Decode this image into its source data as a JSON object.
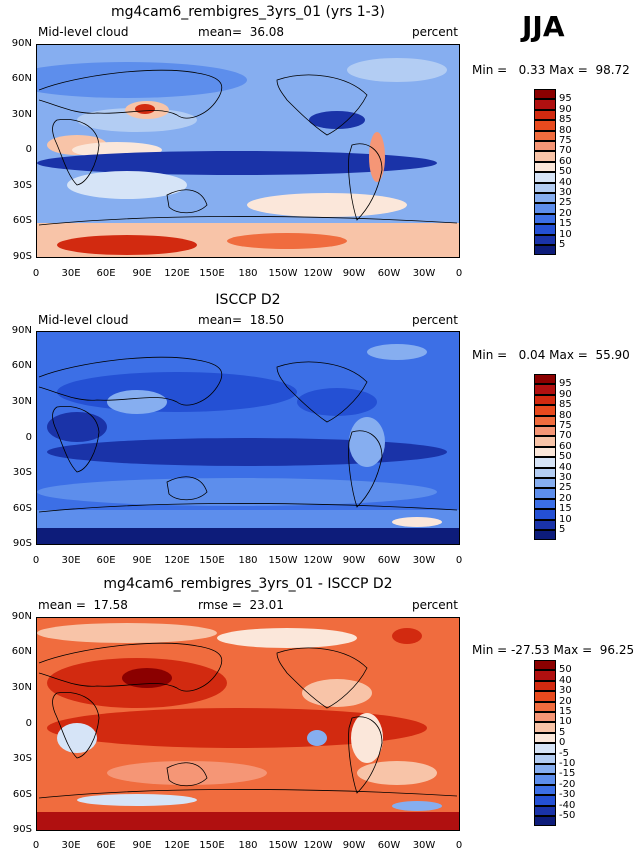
{
  "season": "JJA",
  "x_ticks": [
    "0",
    "30E",
    "60E",
    "90E",
    "120E",
    "150E",
    "180",
    "150W",
    "120W",
    "90W",
    "60W",
    "30W",
    "0"
  ],
  "y_ticks": [
    "90N",
    "60N",
    "30N",
    "0",
    "30S",
    "60S",
    "90S"
  ],
  "panels": [
    {
      "title": "mg4cam6_rembigres_3yrs_01 (yrs 1-3)",
      "left_label": "Mid-level cloud",
      "center_label": "mean=  36.08",
      "right_label": "percent",
      "stats": "Min =   0.33 Max =  98.72",
      "colorbar": [
        "95",
        "90",
        "85",
        "80",
        "75",
        "70",
        "60",
        "50",
        "40",
        "30",
        "25",
        "20",
        "15",
        "10",
        "5"
      ],
      "colors": [
        "#8b0000",
        "#b01010",
        "#d22a10",
        "#e84a1e",
        "#f06c3e",
        "#f59676",
        "#f8c4a8",
        "#fbe7da",
        "#d6e4f7",
        "#b3cdf3",
        "#86aef0",
        "#5d8eec",
        "#3c6fe6",
        "#2450d4",
        "#1a33a8",
        "#0d1c7a"
      ]
    },
    {
      "title": "ISCCP D2",
      "left_label": "Mid-level cloud",
      "center_label": "mean=  18.50",
      "right_label": "percent",
      "stats": "Min =   0.04 Max =  55.90",
      "colorbar": [
        "95",
        "90",
        "85",
        "80",
        "75",
        "70",
        "60",
        "50",
        "40",
        "30",
        "25",
        "20",
        "15",
        "10",
        "5"
      ],
      "colors": [
        "#8b0000",
        "#b01010",
        "#d22a10",
        "#e84a1e",
        "#f06c3e",
        "#f59676",
        "#f8c4a8",
        "#fbe7da",
        "#d6e4f7",
        "#b3cdf3",
        "#86aef0",
        "#5d8eec",
        "#3c6fe6",
        "#2450d4",
        "#1a33a8",
        "#0d1c7a"
      ]
    },
    {
      "title": "mg4cam6_rembigres_3yrs_01 - ISCCP D2",
      "left_label": "mean =  17.58",
      "center_label": "rmse =  23.01",
      "right_label": "percent",
      "stats": "Min = -27.53 Max =  96.25",
      "colorbar": [
        "50",
        "40",
        "30",
        "20",
        "15",
        "10",
        "5",
        "0",
        "-5",
        "-10",
        "-15",
        "-20",
        "-30",
        "-40",
        "-50"
      ],
      "colors": [
        "#8b0000",
        "#b01010",
        "#d22a10",
        "#e84a1e",
        "#f06c3e",
        "#f59676",
        "#f8c4a8",
        "#fbe7da",
        "#d6e4f7",
        "#b3cdf3",
        "#86aef0",
        "#5d8eec",
        "#3c6fe6",
        "#2450d4",
        "#1a33a8",
        "#0d1c7a"
      ]
    }
  ]
}
